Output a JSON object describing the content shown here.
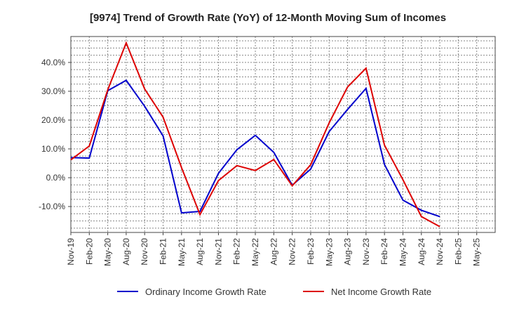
{
  "chart_data": {
    "type": "line",
    "title": "[9974]  Trend of Growth Rate (YoY) of 12-Month Moving Sum of Incomes",
    "xlabel": "",
    "ylabel": "",
    "x": [
      "Nov-19",
      "Feb-20",
      "May-20",
      "Aug-20",
      "Nov-20",
      "Feb-21",
      "May-21",
      "Aug-21",
      "Nov-21",
      "Feb-22",
      "May-22",
      "Aug-22",
      "Nov-22",
      "Feb-23",
      "May-23",
      "Aug-23",
      "Nov-23",
      "Feb-24",
      "May-24",
      "Aug-24",
      "Nov-24",
      "Feb-25",
      "May-25"
    ],
    "yticks": [
      -10,
      0,
      10,
      20,
      30,
      40
    ],
    "ytick_labels": [
      "-10.0%",
      "0.0%",
      "10.0%",
      "20.0%",
      "30.0%",
      "40.0%"
    ],
    "ylim": [
      -19,
      49
    ],
    "grid": true,
    "legend_position": "bottom",
    "series": [
      {
        "name": "Ordinary Income Growth Rate",
        "color": "#0000cc",
        "values": [
          7.0,
          6.8,
          30.2,
          33.8,
          24.8,
          14.5,
          -12.2,
          -11.7,
          1.5,
          9.7,
          14.7,
          8.8,
          -2.6,
          3.0,
          16.0,
          23.7,
          31.0,
          4.6,
          -7.8,
          -11.3,
          -13.5,
          null,
          null
        ]
      },
      {
        "name": "Net Income Growth Rate",
        "color": "#dd0000",
        "values": [
          6.2,
          11.0,
          30.5,
          46.8,
          30.8,
          21.0,
          3.5,
          -12.8,
          -1.0,
          4.2,
          2.5,
          6.3,
          -2.8,
          4.5,
          19.0,
          31.5,
          38.0,
          11.3,
          -0.7,
          -13.5,
          -17.0,
          null,
          null
        ]
      }
    ]
  }
}
